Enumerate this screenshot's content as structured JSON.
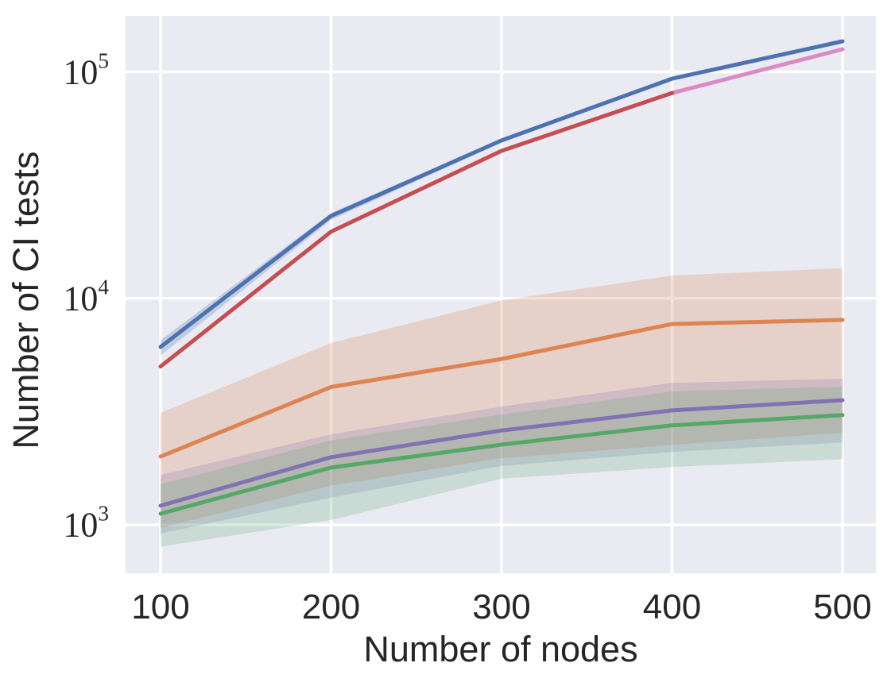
{
  "chart_data": {
    "type": "line",
    "title": "",
    "xlabel": "Number of nodes",
    "ylabel": "Number of CI tests",
    "x_scale": "linear",
    "y_scale": "log",
    "xlim": [
      80,
      519
    ],
    "ylim": [
      610,
      176000
    ],
    "grid": true,
    "legend_position": "none",
    "plot_background": "#eaeaf2",
    "grid_color": "#ffffff",
    "text_color": "#262626",
    "x": [
      100,
      200,
      300,
      400,
      500
    ],
    "x_ticks": [
      100,
      200,
      300,
      400,
      500
    ],
    "y_ticks": [
      {
        "label": "10^3",
        "value": 1000
      },
      {
        "label": "10^4",
        "value": 10000
      },
      {
        "label": "10^5",
        "value": 100000
      }
    ],
    "series": [
      {
        "name": "series-blue",
        "color": "#4c72b0",
        "values": [
          6100,
          23100,
          49800,
          93300,
          136500
        ],
        "band_lo": [
          5600,
          22200,
          48800,
          92000,
          134800
        ],
        "band_hi": [
          6550,
          23800,
          50800,
          94500,
          138500
        ],
        "band_alpha": 0.25
      },
      {
        "name": "series-orange",
        "color": "#dd8452",
        "values": [
          2000,
          4060,
          5400,
          7700,
          8030
        ],
        "band_lo": [
          970,
          1490,
          1970,
          2250,
          2550
        ],
        "band_hi": [
          3120,
          6350,
          9800,
          12600,
          13600
        ],
        "band_alpha": 0.25
      },
      {
        "name": "series-green",
        "color": "#55a868",
        "values": [
          1120,
          1790,
          2260,
          2750,
          3055
        ],
        "band_lo": [
          800,
          1050,
          1600,
          1800,
          1950
        ],
        "band_hi": [
          1510,
          2360,
          3070,
          3880,
          4070
        ],
        "band_alpha": 0.22
      },
      {
        "name": "series-red",
        "color": "#c44e52",
        "values": [
          5000,
          19700,
          44800,
          80700,
          null
        ]
      },
      {
        "name": "series-purple",
        "color": "#8172b3",
        "values": [
          1215,
          1990,
          2610,
          3200,
          3550
        ],
        "band_lo": [
          915,
          1320,
          1820,
          2100,
          2310
        ],
        "band_alpha_note": "",
        "band_hi": [
          1660,
          2510,
          3330,
          4230,
          4420
        ],
        "band_alpha": 0.22
      },
      {
        "name": "series-pink",
        "color": "#da8bc3",
        "values": [
          null,
          null,
          null,
          80700,
          125900
        ]
      }
    ]
  }
}
